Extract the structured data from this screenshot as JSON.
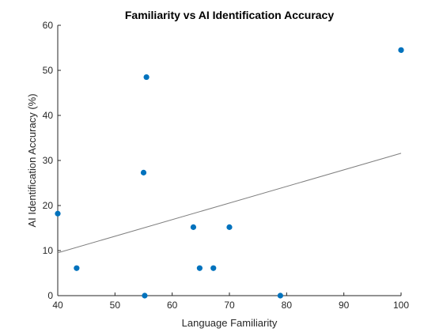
{
  "chart_data": {
    "type": "scatter",
    "title": "Familiarity vs AI Identification Accuracy",
    "xlabel": "Language Familiarity",
    "ylabel": "AI Identification Accuracy (%)",
    "xlim": [
      40,
      100
    ],
    "ylim": [
      0,
      60
    ],
    "xticks": [
      40,
      50,
      60,
      70,
      80,
      90,
      100
    ],
    "yticks": [
      0,
      10,
      20,
      30,
      40,
      50,
      60
    ],
    "grid": false,
    "marker_color": "#0072BD",
    "trend_color": "#7f7f7f",
    "points": [
      {
        "x": 40.0,
        "y": 18.2
      },
      {
        "x": 43.3,
        "y": 6.1
      },
      {
        "x": 55.0,
        "y": 27.3
      },
      {
        "x": 55.2,
        "y": 0.0
      },
      {
        "x": 55.5,
        "y": 48.5
      },
      {
        "x": 63.7,
        "y": 15.2
      },
      {
        "x": 64.8,
        "y": 6.1
      },
      {
        "x": 67.2,
        "y": 6.1
      },
      {
        "x": 70.0,
        "y": 15.2
      },
      {
        "x": 78.9,
        "y": 0.0
      },
      {
        "x": 100.0,
        "y": 54.5
      }
    ],
    "trendline": {
      "x": [
        40,
        100
      ],
      "y": [
        9.5,
        31.6
      ]
    }
  }
}
